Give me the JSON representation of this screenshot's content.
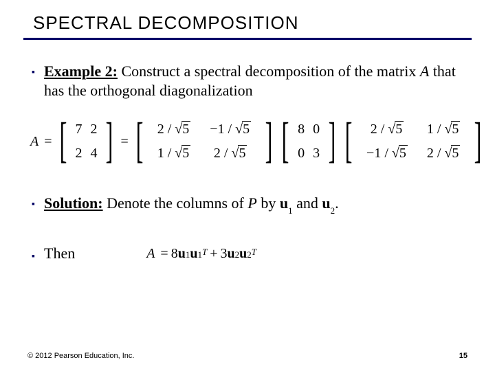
{
  "slide": {
    "title": "SPECTRAL DECOMPOSITION",
    "title_underline_color": "#000066",
    "bullet_color": "#000066",
    "title_font_size": 26,
    "body_font_size": 22,
    "eq_font_size": 20
  },
  "bullets": {
    "example": {
      "label": "Example 2:",
      "text_part1": " Construct a spectral decomposition of the matrix ",
      "matrix_var": "A",
      "text_part2": " that has the orthogonal diagonalization"
    },
    "solution": {
      "label": "Solution:",
      "text_part1": " Denote the columns of ",
      "P_var": "P",
      "text_part2": " by ",
      "u1": "u",
      "u1_sub": "1",
      "and": " and ",
      "u2": "u",
      "u2_sub": "2",
      "period": "."
    },
    "then": {
      "label": "Then"
    }
  },
  "equation_main": {
    "lhs_var": "A",
    "A_matrix": {
      "rows": [
        [
          "7",
          "2"
        ],
        [
          "2",
          "4"
        ]
      ]
    },
    "P_matrix": {
      "rows": [
        [
          {
            "num": "2",
            "den": "5",
            "neg": false
          },
          {
            "num": "1",
            "den": "5",
            "neg": true
          }
        ],
        [
          {
            "num": "1",
            "den": "5",
            "neg": false
          },
          {
            "num": "2",
            "den": "5",
            "neg": false
          }
        ]
      ]
    },
    "D_matrix": {
      "rows": [
        [
          "8",
          "0"
        ],
        [
          "0",
          "3"
        ]
      ]
    },
    "PT_matrix": {
      "rows": [
        [
          {
            "num": "2",
            "den": "5",
            "neg": false
          },
          {
            "num": "1",
            "den": "5",
            "neg": false
          }
        ],
        [
          {
            "num": "1",
            "den": "5",
            "neg": true
          },
          {
            "num": "2",
            "den": "5",
            "neg": false
          }
        ]
      ]
    }
  },
  "equation_then": {
    "lhs_var": "A",
    "term1": {
      "coef": "8",
      "vec": "u",
      "sub": "1",
      "T": "T"
    },
    "plus": "+",
    "term2": {
      "coef": "3",
      "vec": "u",
      "sub": "2",
      "T": "T"
    }
  },
  "footer": {
    "copyright": "© 2012 Pearson Education, Inc.",
    "page": "15"
  }
}
